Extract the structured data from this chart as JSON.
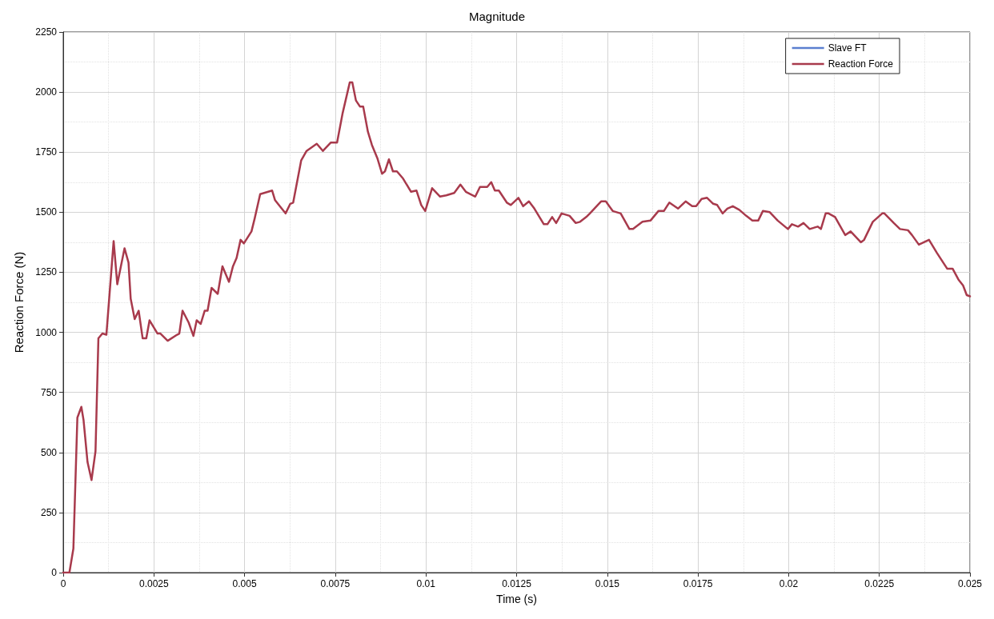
{
  "chart_data": {
    "type": "line",
    "title": "Magnitude",
    "xlabel": "Time (s)",
    "ylabel": "Reaction Force (N)",
    "xlim": [
      0,
      0.025
    ],
    "xticks": [
      0,
      0.0025,
      0.005,
      0.0075,
      0.01,
      0.0125,
      0.015,
      0.0175,
      0.02,
      0.0225,
      0.025
    ],
    "ylim": [
      0,
      2250
    ],
    "yticks": [
      0,
      250,
      500,
      750,
      1000,
      1250,
      1500,
      1750,
      2000,
      2250
    ],
    "grid": true,
    "legend": "top right",
    "marker": "none",
    "line_style": "solid",
    "series": [
      {
        "name": "Slave FT",
        "color": "#5b7fd0"
      },
      {
        "name": "Reaction Force",
        "color": "#a83a4c",
        "x": [
          0,
          0.00017,
          0.00028,
          0.00039,
          0.0005,
          0.00056,
          0.00067,
          0.00078,
          0.00089,
          0.00097,
          0.00108,
          0.00119,
          0.00139,
          0.00149,
          0.00169,
          0.0018,
          0.00186,
          0.00197,
          0.00208,
          0.00219,
          0.00229,
          0.00238,
          0.0026,
          0.00268,
          0.00288,
          0.00314,
          0.0032,
          0.00329,
          0.00346,
          0.00359,
          0.00368,
          0.00379,
          0.0039,
          0.00398,
          0.00409,
          0.00426,
          0.00439,
          0.00457,
          0.00468,
          0.00478,
          0.00489,
          0.00498,
          0.00519,
          0.00528,
          0.00543,
          0.00565,
          0.00576,
          0.00584,
          0.00613,
          0.00626,
          0.00634,
          0.00656,
          0.00671,
          0.00699,
          0.00716,
          0.00738,
          0.00755,
          0.0077,
          0.0079,
          0.00797,
          0.00807,
          0.00818,
          0.00827,
          0.0084,
          0.00851,
          0.00866,
          0.00879,
          0.00887,
          0.00898,
          0.00909,
          0.0092,
          0.00937,
          0.00959,
          0.00974,
          0.00987,
          0.00998,
          0.01017,
          0.01039,
          0.01056,
          0.01078,
          0.01095,
          0.0111,
          0.01136,
          0.01149,
          0.01169,
          0.0118,
          0.0119,
          0.01201,
          0.01223,
          0.01234,
          0.01255,
          0.01268,
          0.01284,
          0.01299,
          0.01325,
          0.01335,
          0.01348,
          0.01359,
          0.01374,
          0.01385,
          0.01396,
          0.01413,
          0.01425,
          0.01442,
          0.01452,
          0.01483,
          0.01496,
          0.01515,
          0.01537,
          0.01561,
          0.01571,
          0.01597,
          0.01619,
          0.01641,
          0.01656,
          0.01671,
          0.01695,
          0.01716,
          0.01734,
          0.01745,
          0.0176,
          0.01775,
          0.01792,
          0.01803,
          0.01818,
          0.01831,
          0.01846,
          0.01864,
          0.01883,
          0.019,
          0.01916,
          0.01929,
          0.01948,
          0.0197,
          0.01998,
          0.02009,
          0.02026,
          0.02041,
          0.02058,
          0.0208,
          0.02089,
          0.02102,
          0.0211,
          0.02128,
          0.02156,
          0.02171,
          0.02199,
          0.02208,
          0.02232,
          0.02258,
          0.02264,
          0.0229,
          0.02307,
          0.02329,
          0.0234,
          0.02359,
          0.02387,
          0.02409,
          0.02437,
          0.02452,
          0.02468,
          0.02481,
          0.02491,
          0.025
        ],
        "values": [
          0,
          0,
          100,
          645,
          690,
          635,
          460,
          385,
          505,
          975,
          995,
          990,
          1380,
          1200,
          1350,
          1290,
          1140,
          1055,
          1090,
          975,
          975,
          1050,
          995,
          995,
          965,
          990,
          995,
          1090,
          1040,
          985,
          1050,
          1035,
          1090,
          1090,
          1185,
          1160,
          1275,
          1210,
          1275,
          1310,
          1385,
          1370,
          1420,
          1475,
          1575,
          1585,
          1590,
          1550,
          1495,
          1535,
          1540,
          1715,
          1755,
          1785,
          1755,
          1790,
          1790,
          1910,
          2040,
          2040,
          1965,
          1940,
          1940,
          1835,
          1780,
          1725,
          1660,
          1670,
          1720,
          1670,
          1670,
          1640,
          1585,
          1590,
          1530,
          1505,
          1600,
          1565,
          1570,
          1580,
          1615,
          1585,
          1565,
          1605,
          1605,
          1625,
          1590,
          1590,
          1540,
          1530,
          1560,
          1525,
          1545,
          1515,
          1450,
          1450,
          1480,
          1455,
          1495,
          1490,
          1485,
          1455,
          1460,
          1480,
          1495,
          1545,
          1545,
          1505,
          1495,
          1430,
          1430,
          1460,
          1465,
          1505,
          1505,
          1540,
          1515,
          1545,
          1525,
          1525,
          1555,
          1560,
          1535,
          1530,
          1495,
          1515,
          1525,
          1510,
          1485,
          1465,
          1465,
          1505,
          1500,
          1465,
          1430,
          1450,
          1440,
          1455,
          1430,
          1440,
          1430,
          1495,
          1495,
          1480,
          1405,
          1420,
          1375,
          1385,
          1460,
          1495,
          1495,
          1455,
          1430,
          1425,
          1405,
          1365,
          1385,
          1330,
          1265,
          1265,
          1220,
          1195,
          1155,
          1150
        ]
      }
    ]
  }
}
